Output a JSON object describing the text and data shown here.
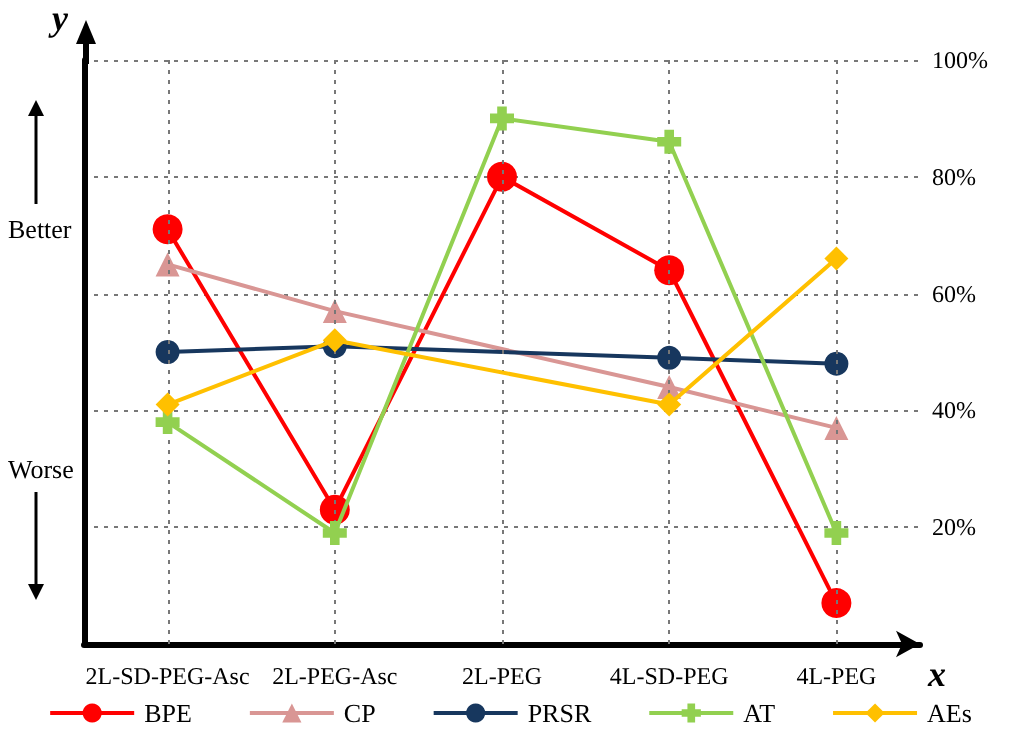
{
  "chart_data": {
    "type": "line",
    "xlabel": "x",
    "ylabel": "y",
    "categories": [
      "2L-SD-PEG-Asc",
      "2L-PEG-Asc",
      "2L-PEG",
      "4L-SD-PEG",
      "4L-PEG"
    ],
    "series": [
      {
        "name": "BPE",
        "color": "#ff0000",
        "marker": "circle",
        "values": [
          71,
          23,
          80,
          64,
          7
        ]
      },
      {
        "name": "CP",
        "color": "#d99694",
        "marker": "triangle",
        "values": [
          65,
          57,
          null,
          44,
          37
        ]
      },
      {
        "name": "PRSR",
        "color": "#17375e",
        "marker": "circle",
        "values": [
          50,
          51,
          null,
          49,
          48
        ]
      },
      {
        "name": "AT",
        "color": "#92d050",
        "marker": "cross",
        "values": [
          38,
          19,
          90,
          86,
          19
        ]
      },
      {
        "name": "AEs",
        "color": "#ffc000",
        "marker": "diamond",
        "values": [
          41,
          52,
          null,
          41,
          66
        ]
      }
    ],
    "ylim": [
      0,
      100
    ],
    "yticks": [
      {
        "value": 20,
        "label": "20%"
      },
      {
        "value": 40,
        "label": "40%"
      },
      {
        "value": 60,
        "label": "60%"
      },
      {
        "value": 80,
        "label": "80%"
      },
      {
        "value": 100,
        "label": "100%"
      }
    ],
    "grid": true,
    "legend": "bottom",
    "line_style": "solid",
    "annotations": [
      "Better",
      "Worse"
    ]
  }
}
